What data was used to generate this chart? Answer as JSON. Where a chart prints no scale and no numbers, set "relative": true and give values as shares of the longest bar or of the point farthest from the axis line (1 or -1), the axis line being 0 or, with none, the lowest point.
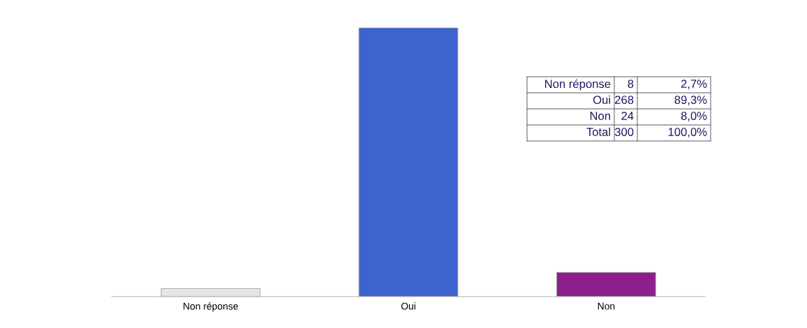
{
  "chart_data": [
    {
      "type": "bar",
      "relative": true,
      "categories": [
        "Non réponse",
        "Oui",
        "Non"
      ],
      "values": [
        0.03,
        1,
        0.09
      ],
      "colors": [
        "#e4e6ea",
        "#3d63cf",
        "#8e1f8c"
      ]
    },
    {
      "type": "other",
      "data_labels": true,
      "categories": [
        "Non réponse",
        "Oui",
        "Non",
        "Total"
      ],
      "series": [
        {
          "values": [
            8,
            268,
            24,
            300
          ]
        },
        {
          "values": [
            2.7,
            89.3,
            8.0,
            100.0
          ],
          "value_labels": [
            "2,7%",
            "89,3%",
            "8,0%",
            "100,0%"
          ]
        }
      ]
    }
  ]
}
